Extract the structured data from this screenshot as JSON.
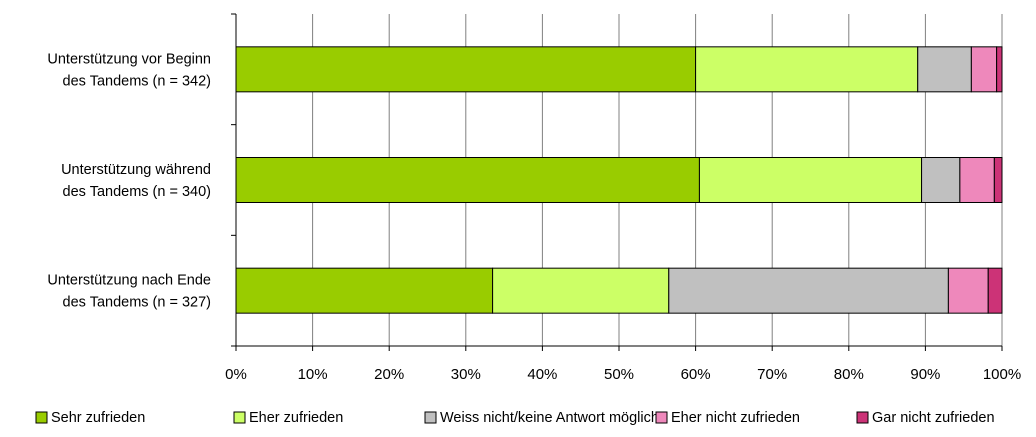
{
  "chart_data": {
    "type": "bar",
    "orientation": "horizontal",
    "stacked": true,
    "categories": [
      [
        "Unterstützung vor Beginn",
        "des Tandems (n = 342)"
      ],
      [
        "Unterstützung während",
        "des Tandems (n = 340)"
      ],
      [
        "Unterstützung nach Ende",
        "des Tandems (n = 327)"
      ]
    ],
    "series": [
      {
        "name": "Sehr zufrieden",
        "color": "#99cc00",
        "values": [
          60,
          60.5,
          33.5
        ]
      },
      {
        "name": "Eher zufrieden",
        "color": "#ccff66",
        "values": [
          29,
          29,
          23
        ]
      },
      {
        "name": "Weiss nicht/keine Antwort möglich",
        "color": "#c0c0c0",
        "values": [
          7,
          5,
          36.5
        ]
      },
      {
        "name": "Eher nicht zufrieden",
        "color": "#ee88bb",
        "values": [
          3.3,
          4.5,
          5.2
        ]
      },
      {
        "name": "Gar nicht zufrieden",
        "color": "#cc3377",
        "values": [
          0.7,
          1,
          1.8
        ]
      }
    ],
    "xlim": [
      0,
      100
    ],
    "xticks": [
      "0%",
      "10%",
      "20%",
      "30%",
      "40%",
      "50%",
      "60%",
      "70%",
      "80%",
      "90%",
      "100%"
    ],
    "grid": true,
    "legend_position": "bottom"
  }
}
